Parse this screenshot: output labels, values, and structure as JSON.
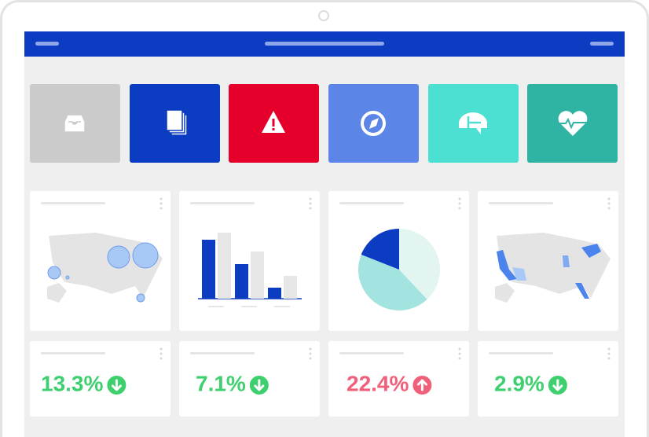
{
  "bar_chart": {
    "type": "bar",
    "series": [
      {
        "color": "#0b3cc1",
        "values": [
          75,
          44,
          14
        ]
      },
      {
        "color": "#e6e6e6",
        "values": [
          84,
          60,
          29
        ]
      }
    ]
  },
  "pie_chart": {
    "type": "pie",
    "values": [
      38,
      43,
      19
    ],
    "colors": [
      "#e2f5f1",
      "#a3e4e1",
      "#0b3cc1"
    ]
  },
  "kpis": [
    {
      "text": "13.3%",
      "trend": "down",
      "color": "#3ecf6e"
    },
    {
      "text": "7.1%",
      "trend": "down",
      "color": "#3ecf6e"
    },
    {
      "text": "22.4%",
      "trend": "up",
      "color": "#f0607a"
    },
    {
      "text": "2.9%",
      "trend": "down",
      "color": "#3ecf6e"
    }
  ]
}
